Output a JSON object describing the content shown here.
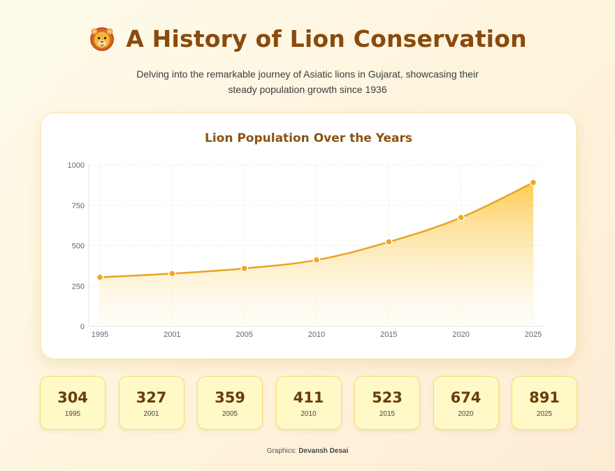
{
  "header": {
    "title": "A History of Lion Conservation",
    "subtitle": "Delving into the remarkable journey of Asiatic lions in Gujarat, showcasing their steady population growth since 1936",
    "icon": "lion-face-icon"
  },
  "chart_data": {
    "type": "area",
    "title": "Lion Population Over the Years",
    "xlabel": "",
    "ylabel": "",
    "categories": [
      "1995",
      "2001",
      "2005",
      "2010",
      "2015",
      "2020",
      "2025"
    ],
    "series": [
      {
        "values": [
          304,
          327,
          359,
          411,
          523,
          674,
          891
        ]
      }
    ],
    "ylim": [
      0,
      1000
    ],
    "yticks": [
      0,
      250,
      500,
      750,
      1000
    ],
    "grid": true,
    "legend": "none",
    "colors": {
      "line": "#e8a323",
      "point": "#f0a81f",
      "fill_top": "#fdc94a",
      "fill_bottom": "#fff8e6"
    }
  },
  "stats": [
    {
      "value": "304",
      "year": "1995"
    },
    {
      "value": "327",
      "year": "2001"
    },
    {
      "value": "359",
      "year": "2005"
    },
    {
      "value": "411",
      "year": "2010"
    },
    {
      "value": "523",
      "year": "2015"
    },
    {
      "value": "674",
      "year": "2020"
    },
    {
      "value": "891",
      "year": "2025"
    }
  ],
  "credit": {
    "label": "Graphics:",
    "author": "Devansh Desai"
  }
}
